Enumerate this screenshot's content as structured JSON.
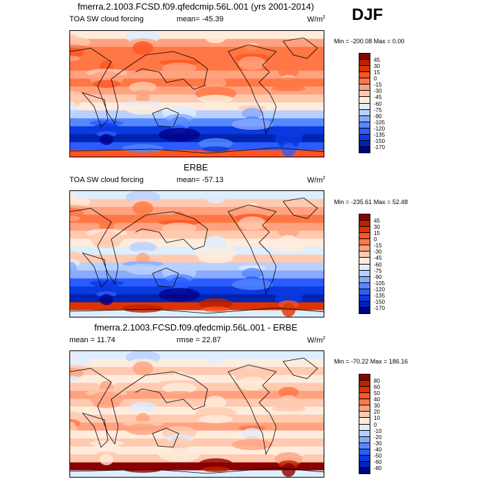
{
  "header": {
    "title": "fmerra.2.1003.FCSD.f09.qfedcmip.56L.001 (yrs 2001-2014)",
    "season": "DJF"
  },
  "panels": [
    {
      "title": "",
      "left": "TOA SW cloud forcing",
      "center": "mean= -45.39",
      "units": "W/m",
      "units_sup": "2",
      "minmax": "Min = -200.08 Max =   0.00",
      "levels": [
        "45",
        "30",
        "15",
        "0",
        "-15",
        "-30",
        "-45",
        "-60",
        "-75",
        "-90",
        "-105",
        "-120",
        "-135",
        "-150",
        "-170"
      ]
    },
    {
      "title": "ERBE",
      "left": "TOA SW cloud forcing",
      "center": "mean= -57.13",
      "units": "W/m",
      "units_sup": "2",
      "minmax": "Min = -235.61 Max =  52.48",
      "levels": [
        "45",
        "30",
        "15",
        "0",
        "-15",
        "-30",
        "-45",
        "-60",
        "-75",
        "-90",
        "-105",
        "-120",
        "-135",
        "-150",
        "-170"
      ]
    },
    {
      "title": "fmerra.2.1003.FCSD.f09.qfedcmip.56L.001 - ERBE",
      "left": "mean =  11.74",
      "center": "rmse =  22.87",
      "units": "W/m",
      "units_sup": "2",
      "minmax": "Min = -70.22 Max = 186.16",
      "levels": [
        "80",
        "60",
        "50",
        "40",
        "30",
        "20",
        "10",
        "0",
        "-10",
        "-20",
        "-30",
        "-40",
        "-50",
        "-60",
        "-80"
      ]
    }
  ],
  "colors": [
    "#8b0000",
    "#b82200",
    "#de3300",
    "#ff5522",
    "#ff7744",
    "#ffa27f",
    "#ffcab0",
    "#ffecdc",
    "#ddeeff",
    "#b9d0ff",
    "#88aaff",
    "#5588ff",
    "#2b5cff",
    "#0a3ae0",
    "#0024b0",
    "#000088"
  ],
  "chart_data": {
    "type": "heatmap",
    "title": "fmerra.2.1003.FCSD.f09.qfedcmip.56L.001 (yrs 2001-2014)",
    "season": "DJF",
    "maps": [
      {
        "name": "model",
        "variable": "TOA SW cloud forcing",
        "mean": -45.39,
        "min": -200.08,
        "max": 0.0
      },
      {
        "name": "ERBE",
        "variable": "TOA SW cloud forcing",
        "mean": -57.13,
        "min": -235.61,
        "max": 52.48
      },
      {
        "name": "model - ERBE",
        "mean": 11.74,
        "rmse": 22.87,
        "min": -70.22,
        "max": 186.16
      }
    ]
  }
}
